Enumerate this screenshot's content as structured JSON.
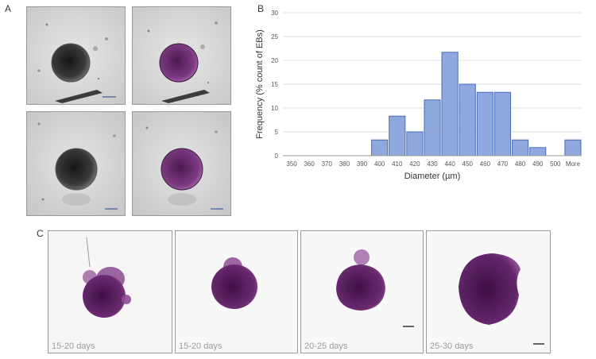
{
  "panels": {
    "a": "A",
    "b": "B",
    "c": "C"
  },
  "chart_data": {
    "type": "bar",
    "categories": [
      "350",
      "360",
      "370",
      "380",
      "390",
      "400",
      "410",
      "420",
      "430",
      "440",
      "450",
      "460",
      "470",
      "480",
      "490",
      "500",
      "More"
    ],
    "values": [
      0,
      0,
      0,
      0,
      0,
      3.3,
      8.3,
      5.0,
      11.7,
      21.7,
      15.0,
      13.3,
      13.3,
      3.3,
      1.7,
      0,
      3.3
    ],
    "xlabel": "Diameter (µm)",
    "ylabel": "Frequency (% count of EBs)",
    "ylim": [
      0,
      30
    ],
    "yticks": [
      0,
      5,
      10,
      15,
      20,
      25,
      30
    ],
    "grid": true,
    "bar_color": "#8fa9df",
    "bar_edge": "#4a6cb3"
  },
  "panel_c": {
    "labels": [
      "15-20 days",
      "15-20 days",
      "20-25 days",
      "25-30 days"
    ]
  },
  "colors": {
    "stain_purple": "#5c2360",
    "cell_dark": "#2a2a2a",
    "micro_bg": "#d8d8d8"
  }
}
